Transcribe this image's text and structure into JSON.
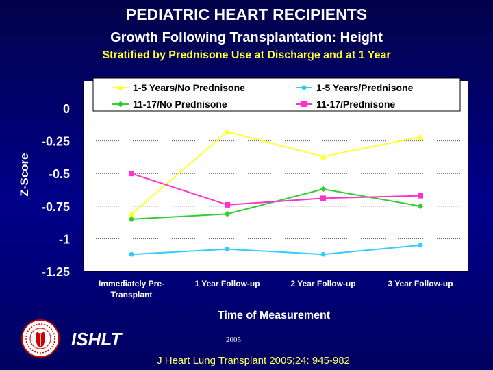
{
  "header": {
    "title": "PEDIATRIC HEART RECIPIENTS",
    "subtitle": "Growth Following Transplantation: Height",
    "stratification": "Stratified by Prednisone Use at Discharge and at 1 Year"
  },
  "footer": {
    "org": "ISHLT",
    "year": "2005",
    "citation": "J Heart Lung Transplant 2005;24: 945-982"
  },
  "colors": {
    "background": "#00008a",
    "plot_area": "#ffffff",
    "title_text": "#ffffff",
    "stratification_text": "#ffff33"
  },
  "chart_data": {
    "type": "line",
    "xlabel": "Time of Measurement",
    "ylabel": "Z-Score",
    "ylim": [
      -1.25,
      0
    ],
    "yticks": [
      "0",
      "-0.25",
      "-0.5",
      "-0.75",
      "-1",
      "-1.25"
    ],
    "ytick_values": [
      0,
      -0.25,
      -0.5,
      -0.75,
      -1,
      -1.25
    ],
    "categories": [
      "Immediately Pre-Transplant",
      "1 Year Follow-up",
      "2 Year Follow-up",
      "3 Year Follow-up"
    ],
    "category_lines": [
      [
        "Immediately Pre-",
        "Transplant"
      ],
      [
        "1 Year Follow-up"
      ],
      [
        "2 Year Follow-up"
      ],
      [
        "3 Year Follow-up"
      ]
    ],
    "grid": "horizontal dotted",
    "legend_position": "top",
    "series": [
      {
        "name": "1-5 Years/No Prednisone",
        "color": "#ffff33",
        "marker": "triangle",
        "values": [
          -0.81,
          -0.18,
          -0.37,
          -0.22
        ]
      },
      {
        "name": "1-5 Years/Prednisone",
        "color": "#33ccff",
        "marker": "circle",
        "values": [
          -1.12,
          -1.08,
          -1.12,
          -1.05
        ]
      },
      {
        "name": "11-17/No Prednisone",
        "color": "#33cc33",
        "marker": "diamond",
        "values": [
          -0.85,
          -0.81,
          -0.62,
          -0.75
        ]
      },
      {
        "name": "11-17/Prednisone",
        "color": "#ff33cc",
        "marker": "square",
        "values": [
          -0.5,
          -0.74,
          -0.69,
          -0.67
        ]
      }
    ]
  }
}
